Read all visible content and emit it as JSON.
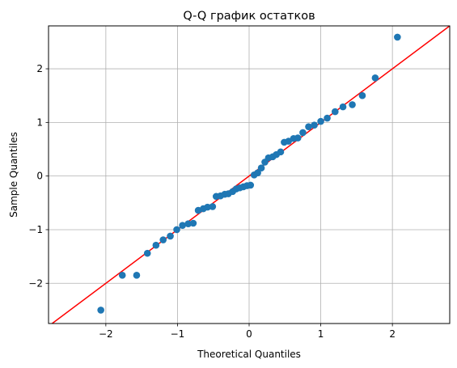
{
  "chart_data": {
    "type": "scatter",
    "title": "Q-Q график остатков",
    "xlabel": "Theoretical Quantiles",
    "ylabel": "Sample Quantiles",
    "xlim": [
      -2.8,
      2.8
    ],
    "ylim": [
      -2.75,
      2.8
    ],
    "xticks": [
      -2,
      -1,
      0,
      1,
      2
    ],
    "yticks": [
      -2,
      -1,
      0,
      1,
      2
    ],
    "xtick_labels": [
      "−2",
      "−1",
      "0",
      "1",
      "2"
    ],
    "ytick_labels": [
      "−2",
      "−1",
      "0",
      "1",
      "2"
    ],
    "grid": true,
    "reference_line": {
      "slope": 1,
      "intercept": 0,
      "color": "#ff0000"
    },
    "point_color": "#1f77b4",
    "points": [
      [
        -2.07,
        -2.5
      ],
      [
        -1.77,
        -1.85
      ],
      [
        -1.57,
        -1.85
      ],
      [
        -1.42,
        -1.44
      ],
      [
        -1.3,
        -1.29
      ],
      [
        -1.2,
        -1.19
      ],
      [
        -1.1,
        -1.12
      ],
      [
        -1.01,
        -1.0
      ],
      [
        -0.93,
        -0.92
      ],
      [
        -0.85,
        -0.89
      ],
      [
        -0.78,
        -0.88
      ],
      [
        -0.71,
        -0.64
      ],
      [
        -0.64,
        -0.61
      ],
      [
        -0.58,
        -0.58
      ],
      [
        -0.51,
        -0.57
      ],
      [
        -0.46,
        -0.38
      ],
      [
        -0.4,
        -0.37
      ],
      [
        -0.34,
        -0.34
      ],
      [
        -0.29,
        -0.33
      ],
      [
        -0.23,
        -0.29
      ],
      [
        -0.18,
        -0.24
      ],
      [
        -0.13,
        -0.22
      ],
      [
        -0.08,
        -0.2
      ],
      [
        -0.03,
        -0.18
      ],
      [
        0.02,
        -0.17
      ],
      [
        0.07,
        0.02
      ],
      [
        0.12,
        0.06
      ],
      [
        0.17,
        0.15
      ],
      [
        0.22,
        0.26
      ],
      [
        0.27,
        0.34
      ],
      [
        0.33,
        0.36
      ],
      [
        0.38,
        0.4
      ],
      [
        0.44,
        0.45
      ],
      [
        0.49,
        0.63
      ],
      [
        0.55,
        0.65
      ],
      [
        0.62,
        0.7
      ],
      [
        0.68,
        0.71
      ],
      [
        0.75,
        0.81
      ],
      [
        0.83,
        0.92
      ],
      [
        0.91,
        0.95
      ],
      [
        1.0,
        1.02
      ],
      [
        1.09,
        1.08
      ],
      [
        1.2,
        1.2
      ],
      [
        1.31,
        1.29
      ],
      [
        1.44,
        1.33
      ],
      [
        1.58,
        1.5
      ],
      [
        1.76,
        1.83
      ],
      [
        2.07,
        2.59
      ]
    ]
  }
}
